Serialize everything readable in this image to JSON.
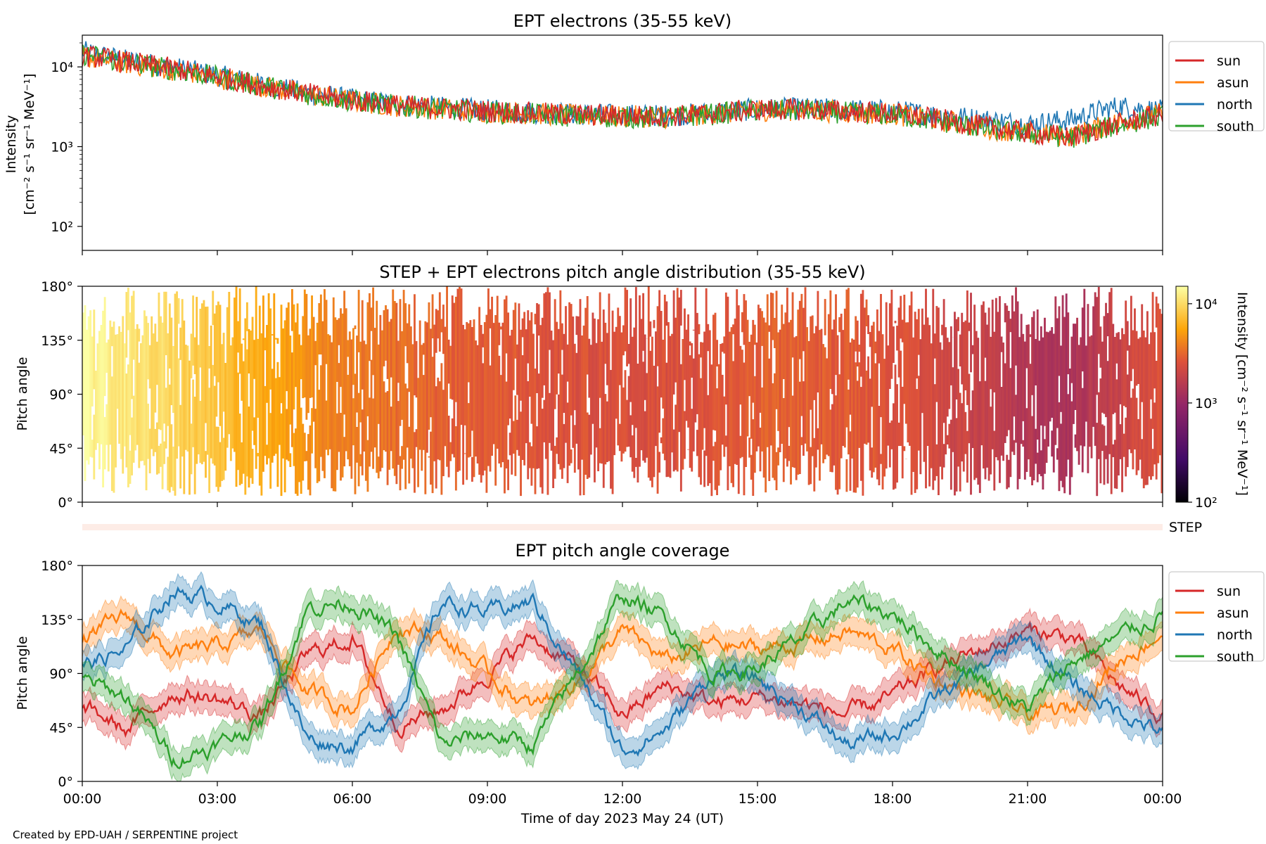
{
  "panels": {
    "intensity": {
      "title": "EPT electrons (35-55 keV)",
      "ylabel_line1": "Intensity",
      "ylabel_line2": "[cm⁻² s⁻¹ sr⁻¹ MeV⁻¹]"
    },
    "pad": {
      "title": "STEP + EPT electrons pitch angle distribution (35-55 keV)",
      "ylabel": "Pitch angle",
      "colorbar_label": "Intensity [cm⁻² s⁻¹ sr⁻¹ MeV⁻¹]",
      "colorbar_ticks": [
        "10⁴",
        "10³",
        "10²"
      ],
      "step_label": "STEP"
    },
    "coverage": {
      "title": "EPT pitch angle coverage",
      "ylabel": "Pitch angle",
      "xlabel": "Time of day 2023 May 24 (UT)"
    }
  },
  "footer": "Created by EPD-UAH / SERPENTINE project",
  "colors": {
    "sun": "#d62728",
    "asun": "#ff7f0e",
    "north": "#1f77b4",
    "south": "#2ca02c"
  },
  "chart_data": [
    {
      "type": "line",
      "title": "EPT electrons (35-55 keV)",
      "xlabel": "",
      "ylabel": "Intensity [cm⁻² s⁻¹ sr⁻¹ MeV⁻¹]",
      "yscale": "log",
      "ylim": [
        50,
        25000
      ],
      "yticks": [
        "10²",
        "10³",
        "10⁴"
      ],
      "xlim_hours": [
        0,
        24
      ],
      "legend_placement": "outside-right",
      "x": [
        0,
        1,
        2,
        3,
        4,
        5,
        6,
        7,
        8,
        9,
        10,
        11,
        12,
        13,
        14,
        15,
        16,
        17,
        18,
        19,
        20,
        21,
        22,
        23,
        24
      ],
      "series": [
        {
          "name": "sun",
          "values": [
            14000,
            11500,
            9500,
            7500,
            5800,
            4600,
            3800,
            3300,
            3000,
            2800,
            2650,
            2500,
            2450,
            2400,
            2600,
            2900,
            2950,
            2750,
            2600,
            2200,
            1800,
            1500,
            1300,
            1900,
            2500
          ]
        },
        {
          "name": "asun",
          "values": [
            13500,
            11000,
            9200,
            7300,
            5700,
            4500,
            3700,
            3250,
            2950,
            2750,
            2600,
            2450,
            2400,
            2350,
            2550,
            2850,
            2900,
            2700,
            2550,
            2150,
            1750,
            1450,
            1350,
            2000,
            2600
          ]
        },
        {
          "name": "north",
          "values": [
            15500,
            12000,
            9800,
            7800,
            6000,
            4700,
            3900,
            3400,
            3100,
            2850,
            2700,
            2550,
            2500,
            2450,
            2650,
            2950,
            3000,
            2900,
            2800,
            2500,
            2200,
            1900,
            2200,
            3200,
            2800
          ]
        },
        {
          "name": "south",
          "values": [
            14500,
            11200,
            9300,
            7400,
            5750,
            4550,
            3750,
            3250,
            2950,
            2700,
            2550,
            2400,
            2350,
            2300,
            2550,
            2850,
            2850,
            2650,
            2500,
            2100,
            1700,
            1450,
            1300,
            1850,
            2400
          ]
        }
      ]
    },
    {
      "type": "heatmap",
      "title": "STEP + EPT electrons pitch angle distribution (35-55 keV)",
      "xlabel": "",
      "ylabel": "Pitch angle",
      "yticks": [
        "0°",
        "45°",
        "90°",
        "135°",
        "180°"
      ],
      "ylim": [
        0,
        180
      ],
      "xlim_hours": [
        0,
        24
      ],
      "colorscale": "log",
      "colorbar_range": [
        100,
        15000
      ],
      "colorbar_label": "Intensity [cm⁻² s⁻¹ sr⁻¹ MeV⁻¹]",
      "hours": [
        0,
        1,
        2,
        3,
        4,
        5,
        6,
        7,
        8,
        9,
        10,
        11,
        12,
        13,
        14,
        15,
        16,
        17,
        18,
        19,
        20,
        21,
        22,
        23,
        24
      ],
      "intensity_trend": [
        14000,
        11500,
        9500,
        7500,
        5800,
        4600,
        3800,
        3300,
        3000,
        2800,
        2650,
        2500,
        2450,
        2400,
        2600,
        2900,
        2950,
        2750,
        2600,
        2200,
        1800,
        1500,
        1300,
        1900,
        2500
      ]
    },
    {
      "type": "line",
      "title": "EPT pitch angle coverage",
      "xlabel": "Time of day 2023 May 24 (UT)",
      "ylabel": "Pitch angle",
      "ylim": [
        0,
        180
      ],
      "yticks": [
        "0°",
        "45°",
        "90°",
        "135°",
        "180°"
      ],
      "xlim_hours": [
        0,
        24
      ],
      "xticks": [
        "00:00",
        "03:00",
        "06:00",
        "09:00",
        "12:00",
        "15:00",
        "18:00",
        "21:00",
        "00:00"
      ],
      "legend_placement": "outside-right",
      "x": [
        0,
        1,
        2,
        3,
        4,
        5,
        6,
        7,
        8,
        9,
        10,
        11,
        12,
        13,
        14,
        15,
        16,
        17,
        18,
        19,
        20,
        21,
        22,
        23,
        24
      ],
      "series": [
        {
          "name": "sun",
          "values": [
            62,
            42,
            75,
            68,
            55,
            105,
            120,
            48,
            60,
            90,
            120,
            95,
            55,
            80,
            65,
            70,
            65,
            55,
            70,
            95,
            110,
            125,
            120,
            80,
            55
          ]
        },
        {
          "name": "asun",
          "values": [
            118,
            138,
            105,
            112,
            125,
            75,
            60,
            132,
            120,
            90,
            60,
            85,
            125,
            100,
            115,
            110,
            115,
            125,
            110,
            85,
            70,
            55,
            60,
            100,
            125
          ]
        },
        {
          "name": "north",
          "values": [
            95,
            110,
            160,
            150,
            130,
            35,
            30,
            60,
            150,
            140,
            150,
            90,
            25,
            45,
            90,
            85,
            60,
            30,
            40,
            70,
            95,
            120,
            80,
            60,
            40
          ]
        },
        {
          "name": "south",
          "values": [
            85,
            70,
            20,
            30,
            50,
            145,
            150,
            120,
            30,
            40,
            30,
            90,
            155,
            135,
            90,
            95,
            120,
            150,
            140,
            110,
            85,
            60,
            100,
            120,
            140
          ]
        }
      ]
    }
  ]
}
